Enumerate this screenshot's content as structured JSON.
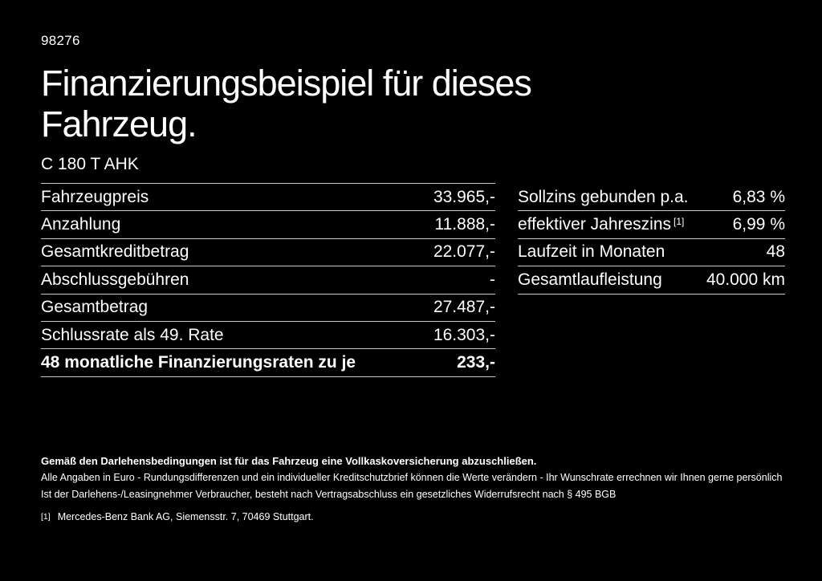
{
  "colors": {
    "background": "#000000",
    "text": "#ffffff",
    "divider": "#c8c8c8"
  },
  "header": {
    "reference_number": "98276",
    "title_line1": "Finanzierungsbeispiel für dieses",
    "title_line2": "Fahrzeug.",
    "model": "C 180 T AHK"
  },
  "financing_table": {
    "rows": [
      {
        "label": "Fahrzeugpreis",
        "value": "33.965,-"
      },
      {
        "label": "Anzahlung",
        "value": "11.888,-"
      },
      {
        "label": "Gesamtkreditbetrag",
        "value": "22.077,-"
      },
      {
        "label": "Abschlussgebühren",
        "value": "-"
      },
      {
        "label": "Gesamtbetrag",
        "value": "27.487,-"
      },
      {
        "label": "Schlussrate als 49. Rate",
        "value": "16.303,-"
      },
      {
        "label": "48 monatliche Finanzierungsraten zu je",
        "value": "233,-"
      }
    ]
  },
  "conditions_table": {
    "rows": [
      {
        "label": "Sollzins gebunden p.a.",
        "value": "6,83 %"
      },
      {
        "label": "effektiver Jahreszins",
        "footnote_marker": "[1]",
        "value": "6,99 %"
      },
      {
        "label": "Laufzeit in Monaten",
        "value": "48"
      },
      {
        "label": "Gesamtlaufleistung",
        "value": "40.000 km"
      }
    ]
  },
  "footer": {
    "insurance_note": "Gemäß den Darlehensbedingungen ist für das Fahrzeug eine Vollkaskoversicherung abzuschließen.",
    "disclaimer_line1": "Alle Angaben in Euro - Rundungsdifferenzen und ein individueller Kreditschutzbrief können die Werte verändern - Ihr Wunschrate errechnen wir Ihnen gerne persönlich",
    "disclaimer_line2": "Ist der Darlehens-/Leasingnehmer Verbraucher, besteht nach Vertragsabschluss ein gesetzliches Widerrufsrecht nach § 495 BGB",
    "footnote_marker": "[1]",
    "footnote_text": "Mercedes-Benz Bank AG, Siemensstr. 7, 70469 Stuttgart."
  }
}
